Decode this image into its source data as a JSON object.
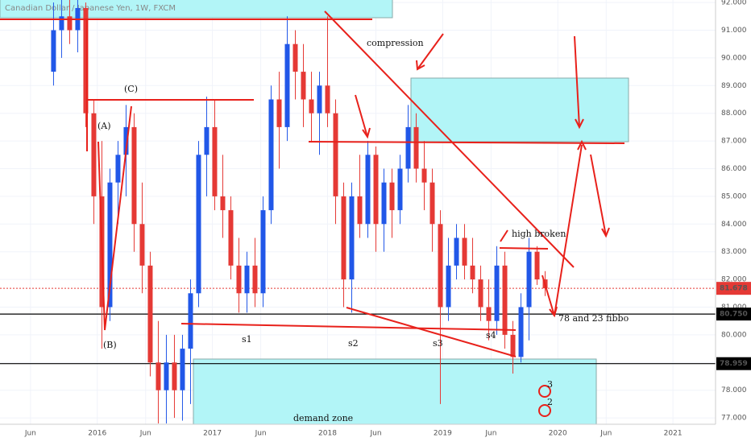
{
  "chart_data": {
    "type": "candlestick",
    "title": "Canadian Dollar / Japanese Yen, 1W, FXCM",
    "up_color": "#2157e8",
    "down_color": "#e53935",
    "xlim": [
      2015.155,
      2021.37
    ],
    "ylim": [
      76.77,
      92.09
    ],
    "xticks": [
      {
        "value": 2015.42,
        "label": "Jun"
      },
      {
        "value": 2016,
        "label": "2016"
      },
      {
        "value": 2016.42,
        "label": "Jun"
      },
      {
        "value": 2017,
        "label": "2017"
      },
      {
        "value": 2017.42,
        "label": "Jun"
      },
      {
        "value": 2018,
        "label": "2018"
      },
      {
        "value": 2018.42,
        "label": "Jun"
      },
      {
        "value": 2019,
        "label": "2019"
      },
      {
        "value": 2019.42,
        "label": "Jun"
      },
      {
        "value": 2020,
        "label": "2020"
      },
      {
        "value": 2020.42,
        "label": "Jun"
      },
      {
        "value": 2021,
        "label": "2021"
      }
    ],
    "yticks": [
      {
        "value": 77,
        "label": "77.000"
      },
      {
        "value": 78,
        "label": "78.000"
      },
      {
        "value": 79,
        "label": "79.000"
      },
      {
        "value": 80,
        "label": "80.000"
      },
      {
        "value": 81,
        "label": "81.000"
      },
      {
        "value": 82,
        "label": "82.000"
      },
      {
        "value": 83,
        "label": "83.000"
      },
      {
        "value": 84,
        "label": "84.000"
      },
      {
        "value": 85,
        "label": "85.000"
      },
      {
        "value": 86,
        "label": "86.000"
      },
      {
        "value": 87,
        "label": "87.000"
      },
      {
        "value": 88,
        "label": "88.000"
      },
      {
        "value": 89,
        "label": "89.000"
      },
      {
        "value": 90,
        "label": "90.000"
      },
      {
        "value": 91,
        "label": "91.000"
      },
      {
        "value": 92,
        "label": "92.000"
      }
    ],
    "price_tags": [
      {
        "value": 81.678,
        "color": "#e53935",
        "dashed": true
      },
      {
        "value": 80.75,
        "label": "80.750",
        "color": "#000000"
      },
      {
        "value": 78.959,
        "label": "78.959",
        "color": "#000000"
      }
    ],
    "candles": [
      {
        "t": 2015.62,
        "o": 89.5,
        "h": 92.0,
        "l": 89.0,
        "c": 91.0
      },
      {
        "t": 2015.69,
        "o": 91.0,
        "h": 92.2,
        "l": 90.0,
        "c": 91.5
      },
      {
        "t": 2015.76,
        "o": 91.5,
        "h": 92.3,
        "l": 90.5,
        "c": 91.0
      },
      {
        "t": 2015.83,
        "o": 91.0,
        "h": 92.1,
        "l": 90.2,
        "c": 91.8
      },
      {
        "t": 2015.9,
        "o": 91.8,
        "h": 92.0,
        "l": 87.5,
        "c": 88.0
      },
      {
        "t": 2015.97,
        "o": 88.0,
        "h": 88.5,
        "l": 84.0,
        "c": 85.0
      },
      {
        "t": 2016.04,
        "o": 85.0,
        "h": 87.0,
        "l": 79.5,
        "c": 81.0
      },
      {
        "t": 2016.11,
        "o": 81.0,
        "h": 86.0,
        "l": 80.5,
        "c": 85.5
      },
      {
        "t": 2016.18,
        "o": 85.5,
        "h": 87.0,
        "l": 84.0,
        "c": 86.5
      },
      {
        "t": 2016.25,
        "o": 86.5,
        "h": 88.3,
        "l": 85.0,
        "c": 87.5
      },
      {
        "t": 2016.32,
        "o": 87.5,
        "h": 88.0,
        "l": 83.0,
        "c": 84.0
      },
      {
        "t": 2016.39,
        "o": 84.0,
        "h": 85.5,
        "l": 81.5,
        "c": 82.5
      },
      {
        "t": 2016.46,
        "o": 82.5,
        "h": 83.0,
        "l": 78.5,
        "c": 79.0
      },
      {
        "t": 2016.53,
        "o": 79.0,
        "h": 80.5,
        "l": 76.8,
        "c": 78.0
      },
      {
        "t": 2016.6,
        "o": 78.0,
        "h": 80.0,
        "l": 76.8,
        "c": 79.0
      },
      {
        "t": 2016.67,
        "o": 79.0,
        "h": 80.0,
        "l": 77.0,
        "c": 78.0
      },
      {
        "t": 2016.74,
        "o": 78.0,
        "h": 80.0,
        "l": 76.9,
        "c": 79.5
      },
      {
        "t": 2016.81,
        "o": 79.5,
        "h": 82.0,
        "l": 77.5,
        "c": 81.5
      },
      {
        "t": 2016.88,
        "o": 81.5,
        "h": 87.0,
        "l": 81.0,
        "c": 86.5
      },
      {
        "t": 2016.95,
        "o": 86.5,
        "h": 88.6,
        "l": 85.0,
        "c": 87.5
      },
      {
        "t": 2017.02,
        "o": 87.5,
        "h": 88.5,
        "l": 84.5,
        "c": 85.0
      },
      {
        "t": 2017.09,
        "o": 85.0,
        "h": 86.5,
        "l": 83.5,
        "c": 84.5
      },
      {
        "t": 2017.16,
        "o": 84.5,
        "h": 85.0,
        "l": 82.0,
        "c": 82.5
      },
      {
        "t": 2017.23,
        "o": 82.5,
        "h": 83.5,
        "l": 80.8,
        "c": 81.5
      },
      {
        "t": 2017.3,
        "o": 81.5,
        "h": 83.0,
        "l": 80.8,
        "c": 82.5
      },
      {
        "t": 2017.37,
        "o": 82.5,
        "h": 83.5,
        "l": 81.0,
        "c": 81.5
      },
      {
        "t": 2017.44,
        "o": 81.5,
        "h": 85.0,
        "l": 81.0,
        "c": 84.5
      },
      {
        "t": 2017.51,
        "o": 84.5,
        "h": 89.0,
        "l": 84.0,
        "c": 88.5
      },
      {
        "t": 2017.58,
        "o": 88.5,
        "h": 89.5,
        "l": 86.0,
        "c": 87.5
      },
      {
        "t": 2017.65,
        "o": 87.5,
        "h": 91.5,
        "l": 87.0,
        "c": 90.5
      },
      {
        "t": 2017.72,
        "o": 90.5,
        "h": 91.0,
        "l": 88.5,
        "c": 89.5
      },
      {
        "t": 2017.79,
        "o": 89.5,
        "h": 90.5,
        "l": 87.5,
        "c": 88.5
      },
      {
        "t": 2017.86,
        "o": 88.5,
        "h": 89.5,
        "l": 87.0,
        "c": 88.0
      },
      {
        "t": 2017.93,
        "o": 88.0,
        "h": 89.5,
        "l": 86.5,
        "c": 89.0
      },
      {
        "t": 2018.0,
        "o": 89.0,
        "h": 91.5,
        "l": 87.5,
        "c": 88.0
      },
      {
        "t": 2018.07,
        "o": 88.0,
        "h": 88.5,
        "l": 84.0,
        "c": 85.0
      },
      {
        "t": 2018.14,
        "o": 85.0,
        "h": 85.5,
        "l": 81.0,
        "c": 82.0
      },
      {
        "t": 2018.21,
        "o": 82.0,
        "h": 85.5,
        "l": 80.8,
        "c": 85.0
      },
      {
        "t": 2018.28,
        "o": 85.0,
        "h": 86.5,
        "l": 83.5,
        "c": 84.0
      },
      {
        "t": 2018.35,
        "o": 84.0,
        "h": 87.0,
        "l": 83.5,
        "c": 86.5
      },
      {
        "t": 2018.42,
        "o": 86.5,
        "h": 86.8,
        "l": 83.0,
        "c": 84.0
      },
      {
        "t": 2018.49,
        "o": 84.0,
        "h": 86.0,
        "l": 83.0,
        "c": 85.5
      },
      {
        "t": 2018.56,
        "o": 85.5,
        "h": 86.0,
        "l": 83.5,
        "c": 84.5
      },
      {
        "t": 2018.63,
        "o": 84.5,
        "h": 86.5,
        "l": 84.0,
        "c": 86.0
      },
      {
        "t": 2018.7,
        "o": 86.0,
        "h": 88.3,
        "l": 85.5,
        "c": 87.5
      },
      {
        "t": 2018.77,
        "o": 87.5,
        "h": 88.0,
        "l": 85.5,
        "c": 86.0
      },
      {
        "t": 2018.84,
        "o": 86.0,
        "h": 87.0,
        "l": 84.5,
        "c": 85.5
      },
      {
        "t": 2018.91,
        "o": 85.5,
        "h": 86.0,
        "l": 83.0,
        "c": 84.0
      },
      {
        "t": 2018.98,
        "o": 84.0,
        "h": 84.5,
        "l": 77.5,
        "c": 81.0
      },
      {
        "t": 2019.05,
        "o": 81.0,
        "h": 83.5,
        "l": 80.5,
        "c": 82.5
      },
      {
        "t": 2019.12,
        "o": 82.5,
        "h": 84.0,
        "l": 82.0,
        "c": 83.5
      },
      {
        "t": 2019.19,
        "o": 83.5,
        "h": 84.0,
        "l": 82.0,
        "c": 82.5
      },
      {
        "t": 2019.26,
        "o": 82.5,
        "h": 83.5,
        "l": 81.5,
        "c": 82.0
      },
      {
        "t": 2019.33,
        "o": 82.0,
        "h": 82.5,
        "l": 80.5,
        "c": 81.0
      },
      {
        "t": 2019.4,
        "o": 81.0,
        "h": 82.0,
        "l": 79.8,
        "c": 80.5
      },
      {
        "t": 2019.47,
        "o": 80.5,
        "h": 83.2,
        "l": 80.0,
        "c": 82.5
      },
      {
        "t": 2019.54,
        "o": 82.5,
        "h": 83.0,
        "l": 79.5,
        "c": 80.0
      },
      {
        "t": 2019.61,
        "o": 80.0,
        "h": 80.5,
        "l": 78.6,
        "c": 79.2
      },
      {
        "t": 2019.68,
        "o": 79.2,
        "h": 81.5,
        "l": 79.0,
        "c": 81.0
      },
      {
        "t": 2019.75,
        "o": 81.0,
        "h": 83.5,
        "l": 79.8,
        "c": 83.0
      },
      {
        "t": 2019.82,
        "o": 83.0,
        "h": 83.2,
        "l": 81.8,
        "c": 82.0
      },
      {
        "t": 2019.89,
        "o": 82.0,
        "h": 82.3,
        "l": 81.4,
        "c": 81.678
      }
    ],
    "annotations": [
      "compression",
      "(C)",
      "(A)",
      "(B)",
      "s1",
      "s2",
      "s3",
      "s4",
      "high broken",
      "78 and 23 fibbo",
      "demand zone",
      "3",
      "2"
    ]
  }
}
